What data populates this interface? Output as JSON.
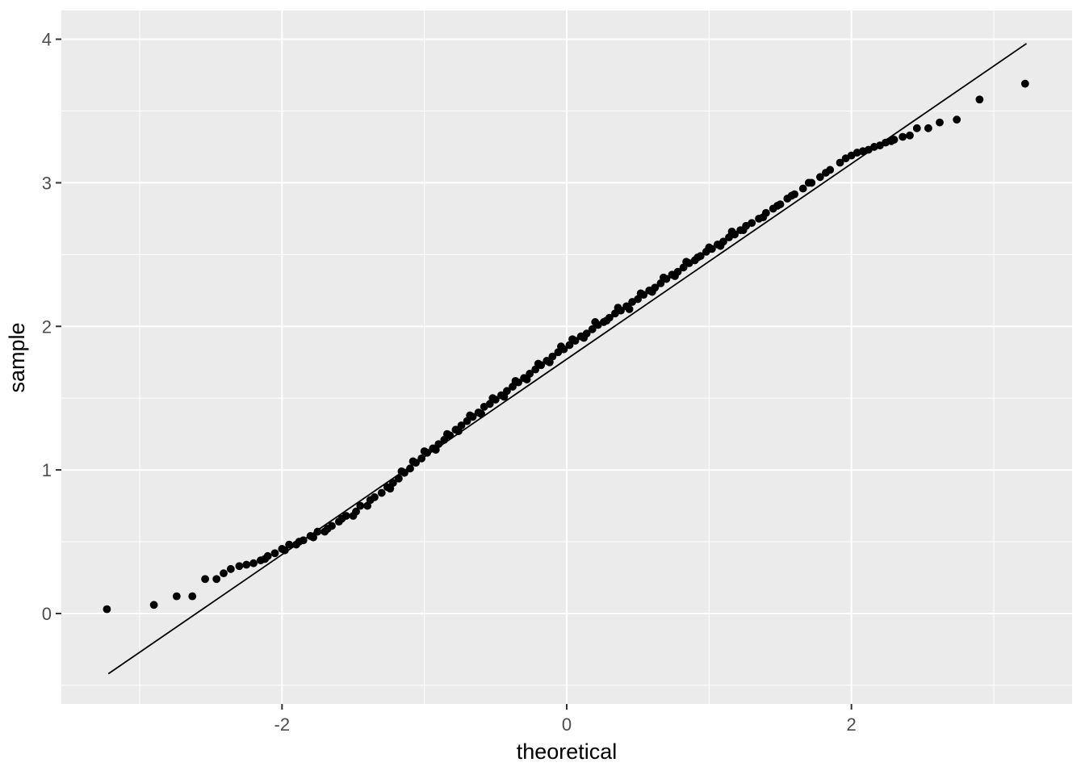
{
  "chart_data": {
    "type": "scatter",
    "title": "",
    "xlabel": "theoretical",
    "ylabel": "sample",
    "xlim": [
      -3.55,
      3.55
    ],
    "ylim": [
      -0.63,
      4.2
    ],
    "grid": "on",
    "legend": "none",
    "x_major_ticks": [
      {
        "value": -2,
        "label": "-2"
      },
      {
        "value": 0,
        "label": "0"
      },
      {
        "value": 2,
        "label": "2"
      }
    ],
    "x_minor_ticks": [
      -3,
      -1,
      1,
      3
    ],
    "y_major_ticks": [
      {
        "value": 0,
        "label": "0"
      },
      {
        "value": 1,
        "label": "1"
      },
      {
        "value": 2,
        "label": "2"
      },
      {
        "value": 3,
        "label": "3"
      },
      {
        "value": 4,
        "label": "4"
      }
    ],
    "y_minor_ticks": [
      -0.5,
      0.5,
      1.5,
      2.5,
      3.5
    ],
    "reference_line": {
      "x1": -3.22,
      "y1": -0.42,
      "x2": 3.23,
      "y2": 3.97
    },
    "points": [
      [
        -3.23,
        0.03
      ],
      [
        -2.9,
        0.06
      ],
      [
        -2.74,
        0.12
      ],
      [
        -2.63,
        0.12
      ],
      [
        -2.54,
        0.24
      ],
      [
        -2.46,
        0.24
      ],
      [
        -2.41,
        0.28
      ],
      [
        -2.36,
        0.31
      ],
      [
        -2.3,
        0.33
      ],
      [
        -2.25,
        0.34
      ],
      [
        -2.2,
        0.35
      ],
      [
        -2.15,
        0.37
      ],
      [
        -2.12,
        0.38
      ],
      [
        -2.1,
        0.4
      ],
      [
        -2.05,
        0.42
      ],
      [
        -2.0,
        0.45
      ],
      [
        -1.98,
        0.44
      ],
      [
        -1.95,
        0.48
      ],
      [
        -1.9,
        0.48
      ],
      [
        -1.88,
        0.5
      ],
      [
        -1.85,
        0.51
      ],
      [
        -1.8,
        0.54
      ],
      [
        -1.78,
        0.53
      ],
      [
        -1.75,
        0.57
      ],
      [
        -1.7,
        0.57
      ],
      [
        -1.68,
        0.59
      ],
      [
        -1.65,
        0.61
      ],
      [
        -1.6,
        0.64
      ],
      [
        -1.58,
        0.66
      ],
      [
        -1.55,
        0.68
      ],
      [
        -1.5,
        0.68
      ],
      [
        -1.48,
        0.71
      ],
      [
        -1.45,
        0.75
      ],
      [
        -1.4,
        0.75
      ],
      [
        -1.38,
        0.79
      ],
      [
        -1.35,
        0.81
      ],
      [
        -1.3,
        0.84
      ],
      [
        -1.26,
        0.88
      ],
      [
        -1.24,
        0.87
      ],
      [
        -1.22,
        0.91
      ],
      [
        -1.18,
        0.94
      ],
      [
        -1.16,
        0.99
      ],
      [
        -1.14,
        0.98
      ],
      [
        -1.1,
        1.01
      ],
      [
        -1.08,
        1.06
      ],
      [
        -1.06,
        1.05
      ],
      [
        -1.02,
        1.08
      ],
      [
        -1.0,
        1.13
      ],
      [
        -0.98,
        1.12
      ],
      [
        -0.94,
        1.15
      ],
      [
        -0.92,
        1.14
      ],
      [
        -0.9,
        1.18
      ],
      [
        -0.86,
        1.21
      ],
      [
        -0.84,
        1.25
      ],
      [
        -0.82,
        1.24
      ],
      [
        -0.78,
        1.28
      ],
      [
        -0.76,
        1.27
      ],
      [
        -0.74,
        1.31
      ],
      [
        -0.7,
        1.34
      ],
      [
        -0.68,
        1.38
      ],
      [
        -0.66,
        1.37
      ],
      [
        -0.62,
        1.4
      ],
      [
        -0.6,
        1.39
      ],
      [
        -0.58,
        1.44
      ],
      [
        -0.54,
        1.46
      ],
      [
        -0.52,
        1.5
      ],
      [
        -0.5,
        1.49
      ],
      [
        -0.46,
        1.52
      ],
      [
        -0.44,
        1.51
      ],
      [
        -0.42,
        1.55
      ],
      [
        -0.38,
        1.58
      ],
      [
        -0.36,
        1.62
      ],
      [
        -0.34,
        1.61
      ],
      [
        -0.3,
        1.64
      ],
      [
        -0.28,
        1.63
      ],
      [
        -0.26,
        1.67
      ],
      [
        -0.22,
        1.7
      ],
      [
        -0.2,
        1.74
      ],
      [
        -0.18,
        1.73
      ],
      [
        -0.14,
        1.76
      ],
      [
        -0.12,
        1.75
      ],
      [
        -0.1,
        1.79
      ],
      [
        -0.06,
        1.82
      ],
      [
        -0.04,
        1.86
      ],
      [
        -0.02,
        1.84
      ],
      [
        0.02,
        1.87
      ],
      [
        0.04,
        1.91
      ],
      [
        0.06,
        1.9
      ],
      [
        0.1,
        1.93
      ],
      [
        0.12,
        1.92
      ],
      [
        0.14,
        1.95
      ],
      [
        0.18,
        1.98
      ],
      [
        0.2,
        2.03
      ],
      [
        0.22,
        2.01
      ],
      [
        0.26,
        2.03
      ],
      [
        0.28,
        2.04
      ],
      [
        0.3,
        2.06
      ],
      [
        0.34,
        2.09
      ],
      [
        0.36,
        2.13
      ],
      [
        0.38,
        2.11
      ],
      [
        0.42,
        2.14
      ],
      [
        0.44,
        2.12
      ],
      [
        0.46,
        2.17
      ],
      [
        0.5,
        2.19
      ],
      [
        0.52,
        2.23
      ],
      [
        0.54,
        2.22
      ],
      [
        0.58,
        2.25
      ],
      [
        0.6,
        2.24
      ],
      [
        0.62,
        2.27
      ],
      [
        0.66,
        2.3
      ],
      [
        0.68,
        2.34
      ],
      [
        0.7,
        2.33
      ],
      [
        0.74,
        2.36
      ],
      [
        0.76,
        2.35
      ],
      [
        0.78,
        2.38
      ],
      [
        0.82,
        2.41
      ],
      [
        0.84,
        2.45
      ],
      [
        0.86,
        2.44
      ],
      [
        0.9,
        2.46
      ],
      [
        0.92,
        2.48
      ],
      [
        0.94,
        2.49
      ],
      [
        0.98,
        2.52
      ],
      [
        1.0,
        2.55
      ],
      [
        1.02,
        2.54
      ],
      [
        1.06,
        2.57
      ],
      [
        1.08,
        2.56
      ],
      [
        1.1,
        2.59
      ],
      [
        1.14,
        2.62
      ],
      [
        1.16,
        2.66
      ],
      [
        1.18,
        2.64
      ],
      [
        1.22,
        2.67
      ],
      [
        1.24,
        2.67
      ],
      [
        1.26,
        2.7
      ],
      [
        1.3,
        2.72
      ],
      [
        1.35,
        2.75
      ],
      [
        1.38,
        2.76
      ],
      [
        1.4,
        2.79
      ],
      [
        1.45,
        2.82
      ],
      [
        1.48,
        2.84
      ],
      [
        1.5,
        2.85
      ],
      [
        1.55,
        2.89
      ],
      [
        1.58,
        2.91
      ],
      [
        1.6,
        2.92
      ],
      [
        1.66,
        2.96
      ],
      [
        1.7,
        3.0
      ],
      [
        1.72,
        3.0
      ],
      [
        1.78,
        3.04
      ],
      [
        1.82,
        3.07
      ],
      [
        1.85,
        3.09
      ],
      [
        1.92,
        3.14
      ],
      [
        1.96,
        3.17
      ],
      [
        2.0,
        3.19
      ],
      [
        2.04,
        3.21
      ],
      [
        2.08,
        3.22
      ],
      [
        2.12,
        3.23
      ],
      [
        2.16,
        3.25
      ],
      [
        2.2,
        3.26
      ],
      [
        2.24,
        3.28
      ],
      [
        2.28,
        3.29
      ],
      [
        2.3,
        3.3
      ],
      [
        2.36,
        3.32
      ],
      [
        2.41,
        3.33
      ],
      [
        2.46,
        3.38
      ],
      [
        2.54,
        3.38
      ],
      [
        2.62,
        3.42
      ],
      [
        2.74,
        3.44
      ],
      [
        2.9,
        3.58
      ],
      [
        3.22,
        3.69
      ]
    ]
  },
  "style": {
    "figure_bg": "#FFFFFF",
    "panel_bg": "#EBEBEB",
    "grid_color": "#FFFFFF",
    "point_color": "#000000",
    "line_color": "#000000",
    "tick_mark_color": "#333333",
    "tick_label_color": "#4D4D4D",
    "axis_title_color": "#000000"
  }
}
